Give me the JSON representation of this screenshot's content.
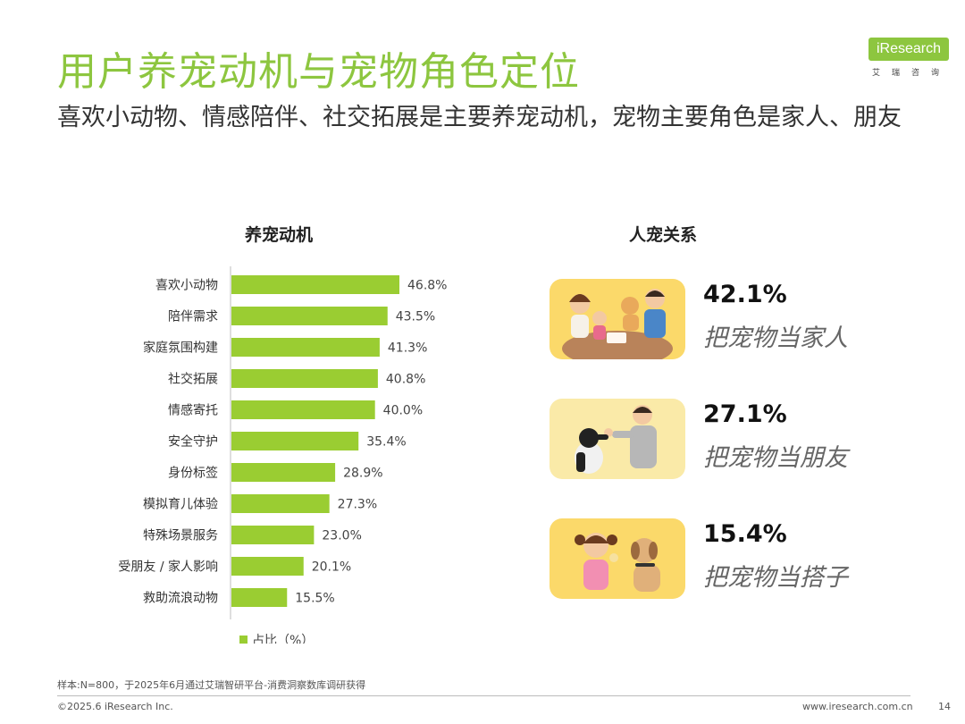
{
  "title": "用户养宠动机与宠物角色定位",
  "subtitle": "喜欢小动物、情感陪伴、社交拓展是主要养宠动机，宠物主要角色是家人、朋友",
  "logo": {
    "text": "iResearch",
    "cn": "艾瑞咨询"
  },
  "colors": {
    "accent": "#8dc63f",
    "bar": "#9acd32"
  },
  "chart_data": {
    "type": "bar",
    "orientation": "horizontal",
    "title": "养宠动机",
    "categories": [
      "喜欢小动物",
      "陪伴需求",
      "家庭氛围构建",
      "社交拓展",
      "情感寄托",
      "安全守护",
      "身份标签",
      "模拟育儿体验",
      "特殊场景服务",
      "受朋友 / 家人影响",
      "救助流浪动物"
    ],
    "values": [
      46.8,
      43.5,
      41.3,
      40.8,
      40.0,
      35.4,
      28.9,
      27.3,
      23.0,
      20.1,
      15.5
    ],
    "value_labels": [
      "46.8%",
      "43.5%",
      "41.3%",
      "40.8%",
      "40.0%",
      "35.4%",
      "28.9%",
      "27.3%",
      "23.0%",
      "20.1%",
      "15.5%"
    ],
    "series": [
      {
        "name": "占比（%）",
        "values": [
          46.8,
          43.5,
          41.3,
          40.8,
          40.0,
          35.4,
          28.9,
          27.3,
          23.0,
          20.1,
          15.5
        ]
      }
    ],
    "legend": "bottom-left",
    "grid": false
  },
  "relationship": {
    "title": "人宠关系",
    "items": [
      {
        "pct": "42.1%",
        "label": "把宠物当家人",
        "icon": "family-with-dog-illustration"
      },
      {
        "pct": "27.1%",
        "label": "把宠物当朋友",
        "icon": "man-high-five-dog-illustration"
      },
      {
        "pct": "15.4%",
        "label": "把宠物当搭子",
        "icon": "girl-with-dog-illustration"
      }
    ]
  },
  "footnote": "样本:N=800，于2025年6月通过艾瑞智研平台-消费洞察数库调研获得",
  "footer": {
    "copyright": "©2025.6 iResearch Inc.",
    "website": "www.iresearch.com.cn",
    "page": "14"
  }
}
